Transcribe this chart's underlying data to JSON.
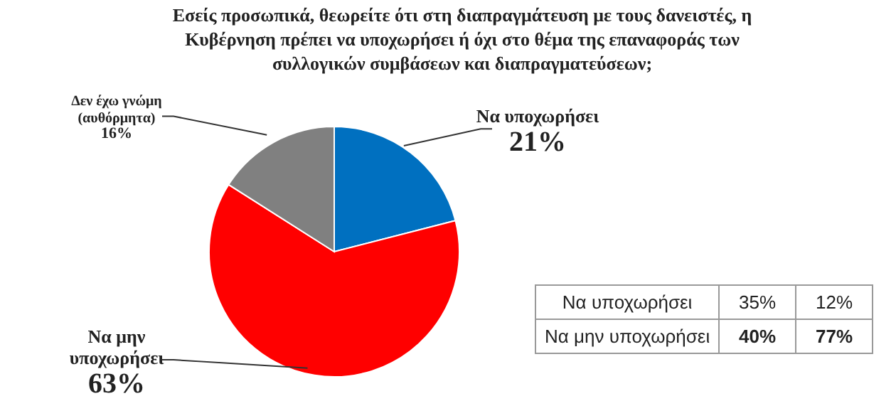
{
  "chart_data": [
    {
      "type": "pie",
      "title": "Εσείς προσωπικά, θεωρείτε ότι στη διαπραγμάτευση με τους δανειστές, η Κυβέρνηση πρέπει να υποχωρήσει ή όχι στο θέμα της επαναφοράς των συλλογικών συμβάσεων και διαπραγματεύσεων;",
      "categories": [
        "Να υποχωρήσει",
        "Να μην υποχωρήσει",
        "Δεν έχω γνώμη (αυθόρμητα)"
      ],
      "values": [
        21,
        63,
        16
      ],
      "value_labels": [
        "21%",
        "63%",
        "16%"
      ],
      "colors": [
        "#0070c0",
        "#ff0000",
        "#808080"
      ]
    },
    {
      "type": "other",
      "y_categories": [
        "Να υποχωρήσει",
        "Να μην υποχωρήσει"
      ],
      "cell_labels": [
        [
          "35%",
          "12%"
        ],
        [
          "40%",
          "77%"
        ]
      ]
    }
  ]
}
